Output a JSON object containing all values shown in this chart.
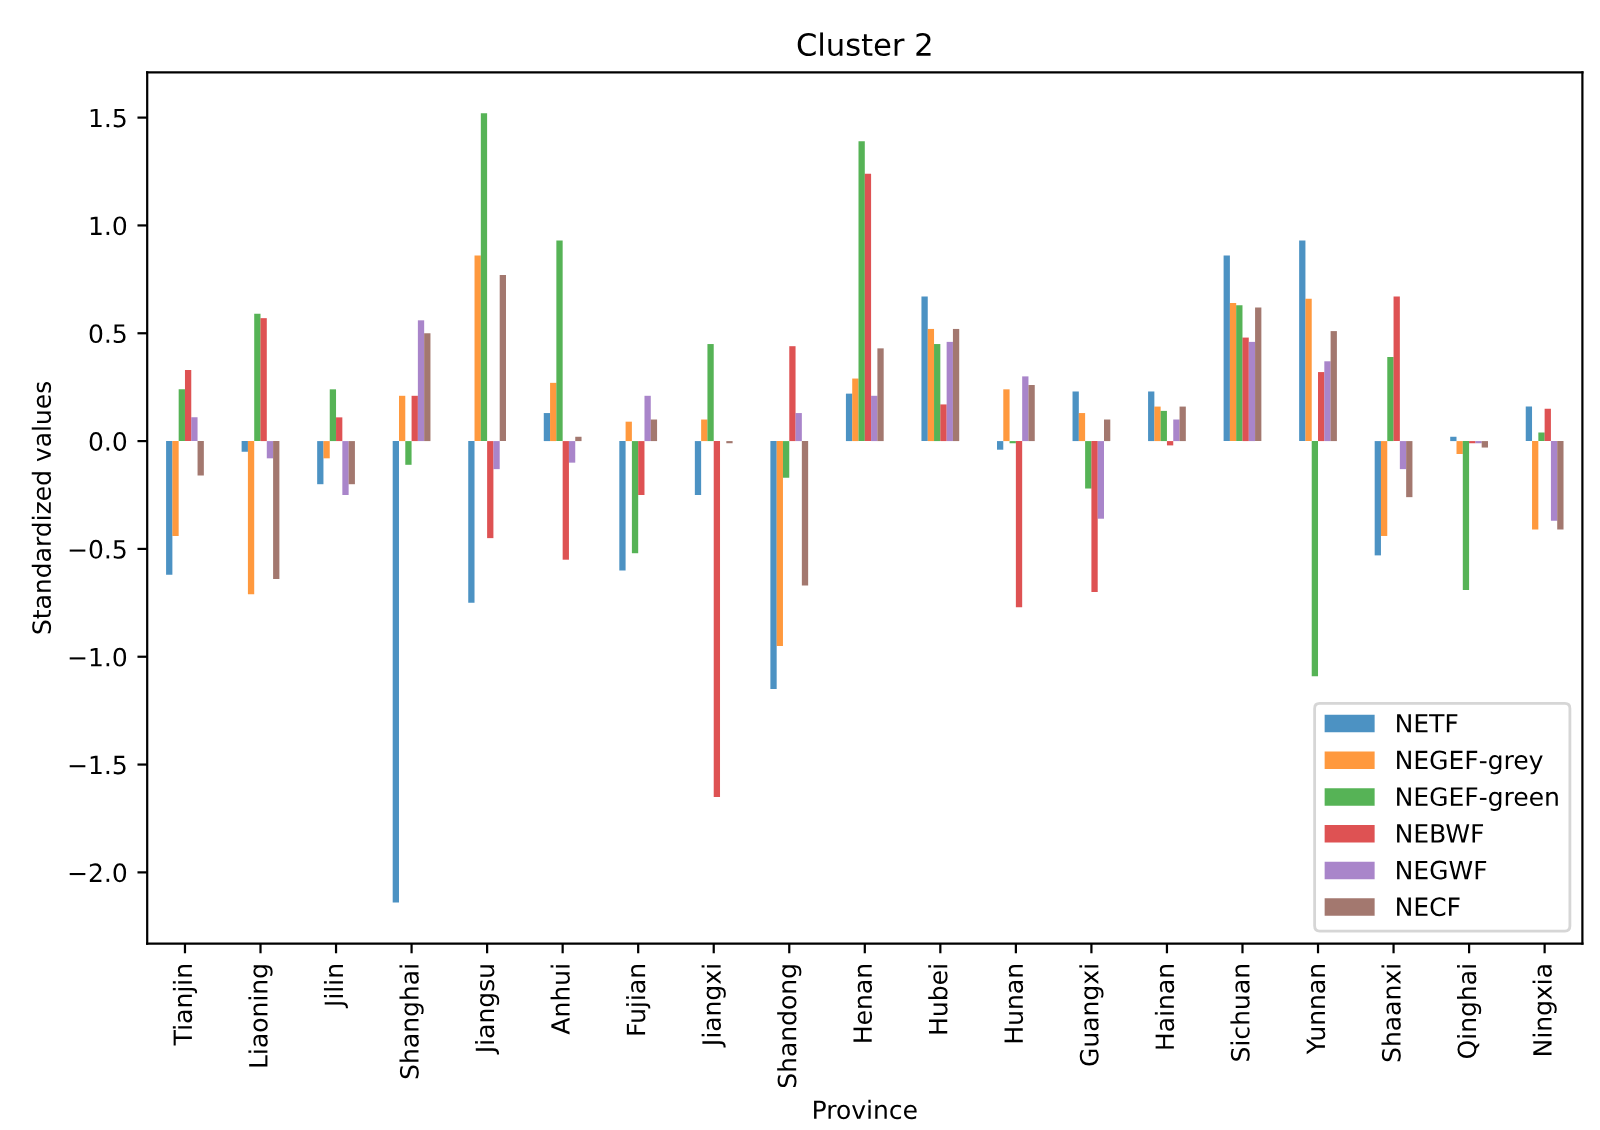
{
  "chart_data": {
    "type": "bar",
    "title": "Cluster 2",
    "xlabel": "Province",
    "ylabel": "Standardized values",
    "categories": [
      "Tianjin",
      "Liaoning",
      "Jilin",
      "Shanghai",
      "Jiangsu",
      "Anhui",
      "Fujian",
      "Jiangxi",
      "Shandong",
      "Henan",
      "Hubei",
      "Hunan",
      "Guangxi",
      "Hainan",
      "Sichuan",
      "Yunnan",
      "Shaanxi",
      "Qinghai",
      "Ningxia"
    ],
    "series": [
      {
        "name": "NETF",
        "color": "#1f77b4",
        "values": [
          -0.62,
          -0.05,
          -0.2,
          -2.14,
          -0.75,
          0.13,
          -0.6,
          -0.25,
          -1.15,
          0.22,
          0.67,
          -0.04,
          0.23,
          0.23,
          0.86,
          0.93,
          -0.53,
          0.02,
          0.16
        ]
      },
      {
        "name": "NEGEF-grey",
        "color": "#ff7f0e",
        "values": [
          -0.44,
          -0.71,
          -0.08,
          0.21,
          0.86,
          0.27,
          0.09,
          0.1,
          -0.95,
          0.29,
          0.52,
          0.24,
          0.13,
          0.16,
          0.64,
          0.66,
          -0.44,
          -0.06,
          -0.41
        ]
      },
      {
        "name": "NEGEF-green",
        "color": "#2ca02c",
        "values": [
          0.24,
          0.59,
          0.24,
          -0.11,
          1.52,
          0.93,
          -0.52,
          0.45,
          -0.17,
          1.39,
          0.45,
          -0.01,
          -0.22,
          0.14,
          0.63,
          -1.09,
          0.39,
          -0.69,
          0.04
        ]
      },
      {
        "name": "NEBWF",
        "color": "#d62728",
        "values": [
          0.33,
          0.57,
          0.11,
          0.21,
          -0.45,
          -0.55,
          -0.25,
          -1.65,
          0.44,
          1.24,
          0.17,
          -0.77,
          -0.7,
          -0.02,
          0.48,
          0.32,
          0.67,
          -0.01,
          0.15
        ]
      },
      {
        "name": "NEGWF",
        "color": "#9467bd",
        "values": [
          0.11,
          -0.08,
          -0.25,
          0.56,
          -0.13,
          -0.1,
          0.21,
          0.0,
          0.13,
          0.21,
          0.46,
          0.3,
          -0.36,
          0.1,
          0.46,
          0.37,
          -0.13,
          -0.01,
          -0.37
        ]
      },
      {
        "name": "NECF",
        "color": "#8c564b",
        "values": [
          -0.16,
          -0.64,
          -0.2,
          0.5,
          0.77,
          0.02,
          0.1,
          -0.01,
          -0.67,
          0.43,
          0.52,
          0.26,
          0.1,
          0.16,
          0.62,
          0.51,
          -0.26,
          -0.03,
          -0.41
        ]
      }
    ],
    "ylim": [
      -2.33,
      1.71
    ],
    "yticks": [
      {
        "value": -2.0,
        "label": "−2.0"
      },
      {
        "value": -1.5,
        "label": "−1.5"
      },
      {
        "value": -1.0,
        "label": "−1.0"
      },
      {
        "value": -0.5,
        "label": "−0.5"
      },
      {
        "value": 0.0,
        "label": "0.0"
      },
      0.5,
      {
        "value": 1.0,
        "label": "1.0"
      },
      1.5
    ],
    "legend": "lower right",
    "grid": false
  }
}
